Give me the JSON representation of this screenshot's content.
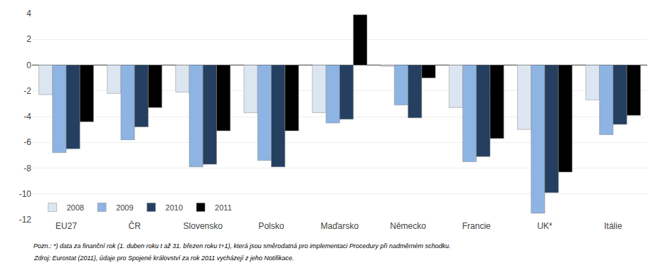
{
  "chart_data": {
    "type": "bar",
    "categories": [
      "EU27",
      "ČR",
      "Slovensko",
      "Polsko",
      "Maďarsko",
      "Německo",
      "Francie",
      "UK*",
      "Itálie"
    ],
    "series": [
      {
        "name": "2008",
        "color": "#dce6f1",
        "values": [
          -2.3,
          -2.2,
          -2.1,
          -3.7,
          -3.7,
          -0.1,
          -3.3,
          -5.0,
          -2.7
        ]
      },
      {
        "name": "2009",
        "color": "#8db4e2",
        "values": [
          -6.8,
          -5.8,
          -7.9,
          -7.4,
          -4.5,
          -3.1,
          -7.5,
          -11.5,
          -5.4
        ]
      },
      {
        "name": "2010",
        "color": "#243f60",
        "values": [
          -6.5,
          -4.8,
          -7.7,
          -7.9,
          -4.2,
          -4.1,
          -7.1,
          -9.9,
          -4.6
        ]
      },
      {
        "name": "2011",
        "color": "#000000",
        "values": [
          -4.4,
          -3.3,
          -5.1,
          -5.1,
          3.9,
          -1.0,
          -5.7,
          -8.3,
          -3.9
        ]
      }
    ],
    "ylim": [
      -12,
      4
    ],
    "yticks": [
      -12,
      -10,
      -8,
      -6,
      -4,
      -2,
      0,
      2,
      4
    ],
    "grid": true,
    "legend": "lower left",
    "annotations": [
      "Pozn.: *) data za finanční rok (1. duben roku t až 31. březen roku t+1), která jsou směrodatná pro implementaci Procedury při nadměrném schodku.",
      "Zdroj: Eurostat (2011), údaje pro Spojené království za rok 2011 vycházejí z jeho Notifikace."
    ]
  }
}
